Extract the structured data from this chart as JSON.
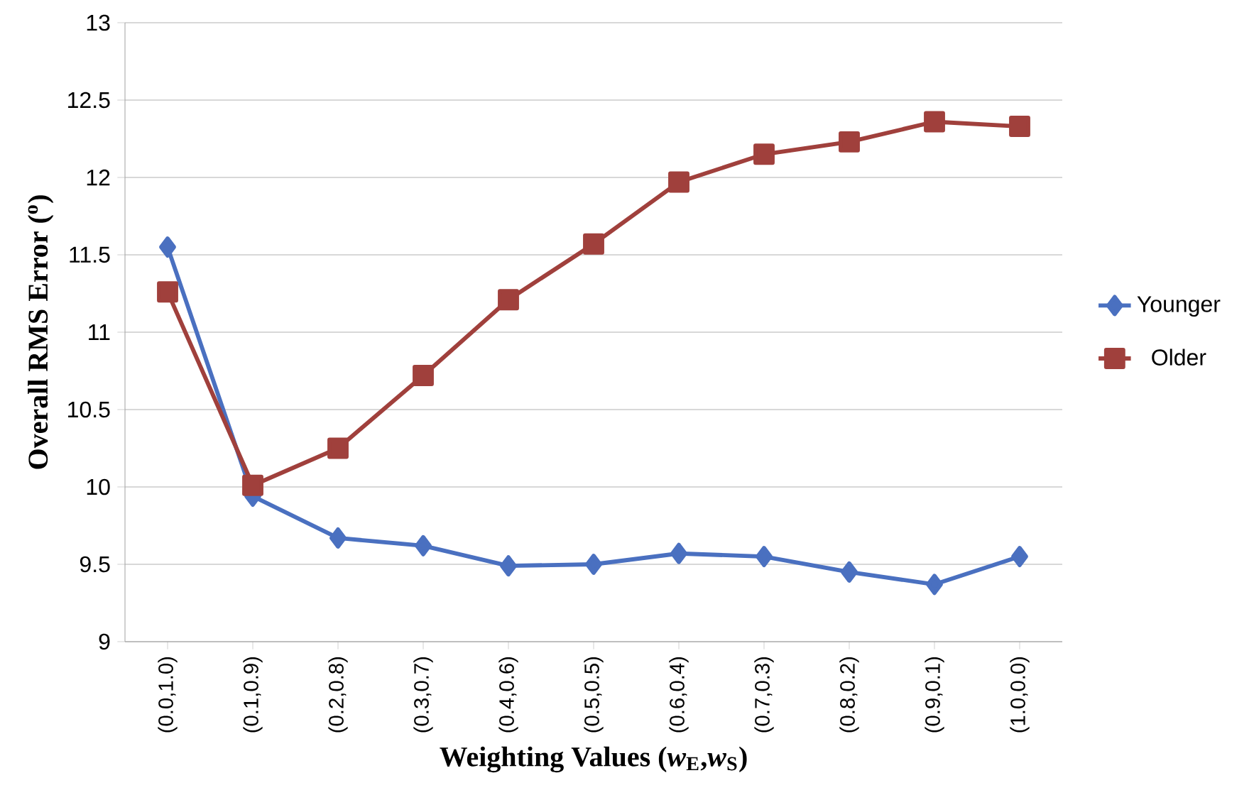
{
  "chart_data": {
    "type": "line",
    "xlabel": "Weighting Values (*w*$_{E}$,*w*$_{S}$)",
    "ylabel": "Overall RMS Error ($^{o}$)",
    "categories": [
      "(0.0,1.0)",
      "(0.1,0.9)",
      "(0.2,0.8)",
      "(0.3,0.7)",
      "(0.4,0.6)",
      "(0.5,0.5)",
      "(0.6,0.4)",
      "(0.7,0.3)",
      "(0.8,0.2)",
      "(0.9,0.1)",
      "(1.0,0.0)"
    ],
    "series": [
      {
        "name": "Younger",
        "color": "#4a70c0",
        "marker": "diamond",
        "values": [
          11.55,
          9.94,
          9.67,
          9.62,
          9.49,
          9.5,
          9.57,
          9.55,
          9.45,
          9.37,
          9.55
        ]
      },
      {
        "name": "Older",
        "color": "#a0403c",
        "marker": "square",
        "values": [
          11.26,
          10.01,
          10.25,
          10.72,
          11.21,
          11.57,
          11.97,
          12.15,
          12.23,
          12.36,
          12.33
        ]
      }
    ],
    "ylim": [
      9,
      13
    ],
    "yticks": [
      9,
      9.5,
      10,
      10.5,
      11,
      11.5,
      12,
      12.5,
      13
    ],
    "grid": "y",
    "legend": "right",
    "line_style": "solid"
  }
}
